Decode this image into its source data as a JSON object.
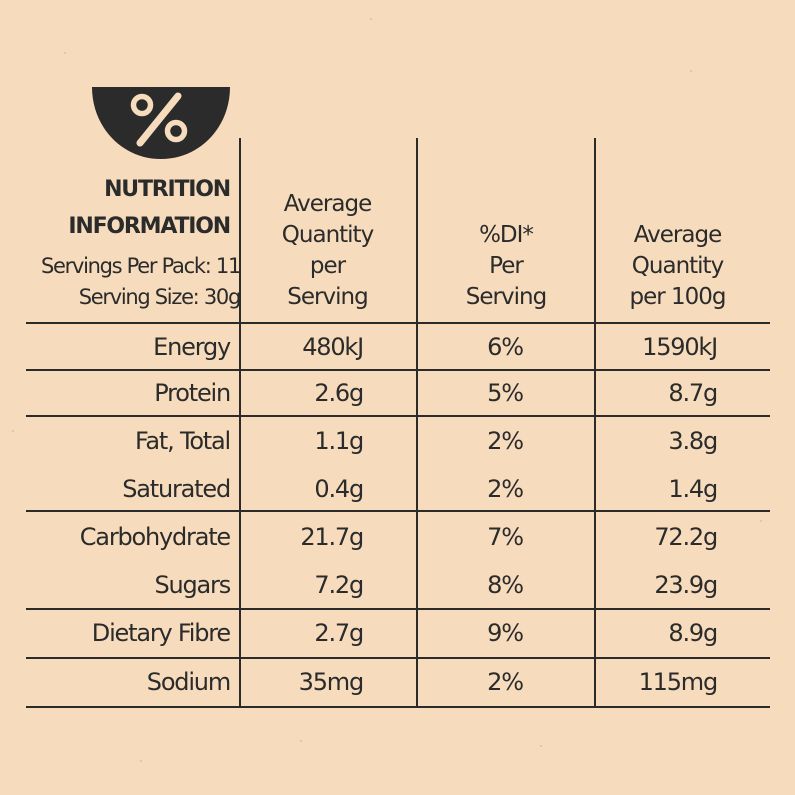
{
  "header": {
    "title_line1": "NUTRITION",
    "title_line2": "INFORMATION",
    "servings_per_pack": "Servings Per Pack: 11",
    "serving_size": "Serving Size: 30g"
  },
  "columns": [
    {
      "lines": [
        "Average",
        "Quantity",
        "per",
        "Serving"
      ]
    },
    {
      "lines": [
        "%DI*",
        "Per",
        "Serving"
      ]
    },
    {
      "lines": [
        "Average",
        "Quantity",
        "per 100g"
      ]
    }
  ],
  "rows": [
    {
      "label": "Energy",
      "per_serving": "480kJ",
      "di": "6%",
      "per_100g": "1590kJ"
    },
    {
      "label": "Protein",
      "per_serving": "2.6g",
      "di": "5%",
      "per_100g": "8.7g"
    },
    {
      "label": "Fat, Total",
      "per_serving": "1.1g",
      "di": "2%",
      "per_100g": "3.8g"
    },
    {
      "label": "Saturated",
      "per_serving": "0.4g",
      "di": "2%",
      "per_100g": "1.4g"
    },
    {
      "label": "Carbohydrate",
      "per_serving": "21.7g",
      "di": "7%",
      "per_100g": "72.2g"
    },
    {
      "label": "Sugars",
      "per_serving": "7.2g",
      "di": "8%",
      "per_100g": "23.9g"
    },
    {
      "label": "Dietary Fibre",
      "per_serving": "2.7g",
      "di": "9%",
      "per_100g": "8.9g"
    },
    {
      "label": "Sodium",
      "per_serving": "35mg",
      "di": "2%",
      "per_100g": "115mg"
    }
  ],
  "icons": {
    "bowl": "percent-bowl-icon"
  },
  "colors": {
    "background": "#f6dcbd",
    "ink": "#2b2b2b"
  }
}
